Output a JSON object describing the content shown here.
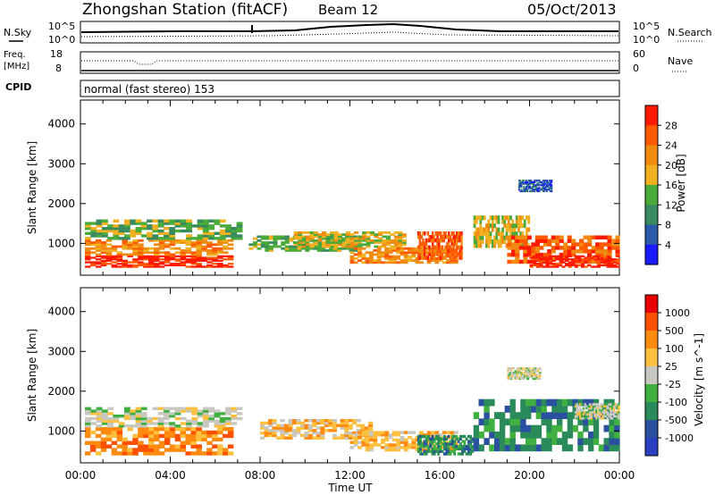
{
  "header": {
    "title": "Zhongshan Station (fitACF)",
    "beam": "Beam 12",
    "date": "05/Oct/2013"
  },
  "status_panels": {
    "nsky_label": "N.Sky",
    "nsky_tick_top": "10^5",
    "nsky_tick_bottom": "10^0",
    "nsearch_label": "N.Search",
    "nsearch_tick_top": "10^5",
    "nsearch_tick_bottom": "10^0",
    "freq_label": "Freq.",
    "freq_unit": "[MHz]",
    "freq_tick_top": "18",
    "freq_tick_bottom": "8",
    "nave_label": "Nave",
    "nave_tick_top": "60",
    "nave_tick_bottom": "0",
    "cpid_label": "CPID",
    "cpid_text": "normal (fast stereo) 153"
  },
  "colors": {
    "power": [
      "#1a1aff",
      "#2a5aa8",
      "#3a8a60",
      "#4aaa3a",
      "#f0b020",
      "#f08a10",
      "#ff5a00",
      "#ff1a00"
    ],
    "velocity": [
      "#e80000",
      "#ff5000",
      "#ff8a10",
      "#ffc040",
      "#c8c8c0",
      "#40b040",
      "#2a8a5a",
      "#2a50a0",
      "#2a40c0"
    ]
  },
  "chart_data": [
    {
      "type": "heatmap",
      "name": "power",
      "ylabel": "Slant Range [km]",
      "xlabel": "Time UT",
      "x_ticks": [
        "00:00",
        "04:00",
        "08:00",
        "12:00",
        "16:00",
        "20:00",
        "00:00"
      ],
      "y_ticks": [
        "1000",
        "2000",
        "3000",
        "4000"
      ],
      "ylim": [
        200,
        4600
      ],
      "xlim_hours": [
        0,
        24
      ],
      "colorbar_title": "Power [dB]",
      "colorbar_ticks": [
        "4",
        "8",
        "12",
        "16",
        "20",
        "24",
        "28"
      ],
      "regions": [
        {
          "t0": 0.2,
          "t1": 6.8,
          "r0": 400,
          "r1": 700,
          "level": 7
        },
        {
          "t0": 0.2,
          "t1": 6.8,
          "r0": 700,
          "r1": 1100,
          "level": 5
        },
        {
          "t0": 0.2,
          "t1": 7.2,
          "r0": 1100,
          "r1": 1600,
          "level": 3
        },
        {
          "t0": 7.5,
          "t1": 12.5,
          "r0": 800,
          "r1": 1200,
          "level": 3
        },
        {
          "t0": 9.5,
          "t1": 14.5,
          "r0": 900,
          "r1": 1300,
          "level": 4
        },
        {
          "t0": 12,
          "t1": 16.8,
          "r0": 500,
          "r1": 900,
          "level": 5
        },
        {
          "t0": 15,
          "t1": 17,
          "r0": 600,
          "r1": 1300,
          "level": 6
        },
        {
          "t0": 17.5,
          "t1": 20,
          "r0": 900,
          "r1": 1700,
          "level": 4
        },
        {
          "t0": 19,
          "t1": 24,
          "r0": 500,
          "r1": 1200,
          "level": 6
        },
        {
          "t0": 20,
          "t1": 24,
          "r0": 400,
          "r1": 700,
          "level": 7
        },
        {
          "t0": 19.5,
          "t1": 21,
          "r0": 2300,
          "r1": 2600,
          "level": 1
        }
      ]
    },
    {
      "type": "heatmap",
      "name": "velocity",
      "ylabel": "Slant Range [km]",
      "xlabel": "Time UT",
      "x_ticks": [
        "00:00",
        "04:00",
        "08:00",
        "12:00",
        "16:00",
        "20:00",
        "00:00"
      ],
      "y_ticks": [
        "1000",
        "2000",
        "3000",
        "4000"
      ],
      "ylim": [
        200,
        4600
      ],
      "xlim_hours": [
        0,
        24
      ],
      "colorbar_title": "Velocity [m s^-1]",
      "colorbar_ticks": [
        "1000",
        "500",
        "100",
        "25",
        "-25",
        "-100",
        "-500",
        "-1000"
      ],
      "regions": [
        {
          "t0": 0.2,
          "t1": 6.8,
          "r0": 400,
          "r1": 1100,
          "level": 2
        },
        {
          "t0": 0.2,
          "t1": 7.2,
          "r0": 1100,
          "r1": 1600,
          "level": 4
        },
        {
          "t0": 8,
          "t1": 13,
          "r0": 800,
          "r1": 1300,
          "level": 3
        },
        {
          "t0": 12,
          "t1": 16.8,
          "r0": 500,
          "r1": 1000,
          "level": 3
        },
        {
          "t0": 15,
          "t1": 17.5,
          "r0": 400,
          "r1": 900,
          "level": 6
        },
        {
          "t0": 17.5,
          "t1": 24,
          "r0": 500,
          "r1": 1800,
          "level": 6
        },
        {
          "t0": 22,
          "t1": 24,
          "r0": 1300,
          "r1": 1700,
          "level": 4
        },
        {
          "t0": 19,
          "t1": 20.5,
          "r0": 2300,
          "r1": 2600,
          "level": 4
        }
      ]
    }
  ]
}
